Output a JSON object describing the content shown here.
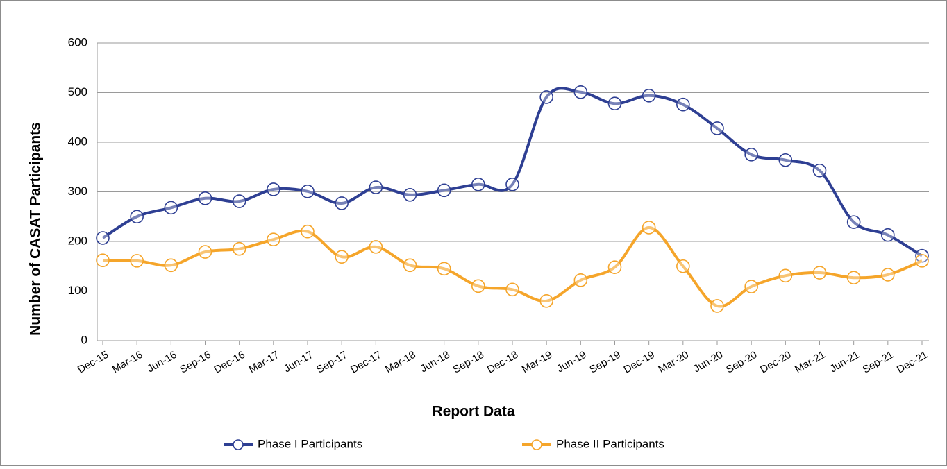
{
  "chart_data": {
    "type": "line",
    "y_label": "Number of CASAT Participants",
    "x_label": "Report Data",
    "categories": [
      "Dec-15",
      "Mar-16",
      "Jun-16",
      "Sep-16",
      "Dec-16",
      "Mar-17",
      "Jun-17",
      "Sep-17",
      "Dec-17",
      "Mar-18",
      "Jun-18",
      "Sep-18",
      "Dec-18",
      "Mar-19",
      "Jun-19",
      "Sep-19",
      "Dec-19",
      "Mar-20",
      "Jun-20",
      "Sep-20",
      "Dec-20",
      "Mar-21",
      "Jun-21",
      "Sep-21",
      "Dec-21"
    ],
    "series": [
      {
        "name": "Phase I Participants",
        "color": "#2e3f93",
        "values": [
          207,
          250,
          268,
          287,
          281,
          305,
          301,
          277,
          309,
          294,
          303,
          315,
          315,
          491,
          501,
          478,
          494,
          476,
          428,
          375,
          364,
          343,
          239,
          213,
          171
        ]
      },
      {
        "name": "Phase II Participants",
        "color": "#f5a52a",
        "values": [
          162,
          161,
          152,
          179,
          185,
          204,
          220,
          169,
          189,
          152,
          145,
          110,
          103,
          80,
          122,
          148,
          228,
          150,
          70,
          109,
          131,
          137,
          127,
          133,
          161
        ]
      }
    ],
    "ylim": [
      0,
      600
    ],
    "yticks": [
      0,
      100,
      200,
      300,
      400,
      500,
      600
    ],
    "grid": true,
    "legend": "bottom"
  }
}
